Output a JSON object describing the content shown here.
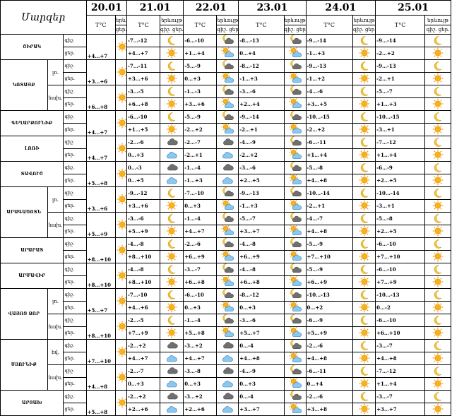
{
  "header": {
    "corner": "Մարզեր",
    "dates": [
      "20.01",
      "21.01",
      "22.01",
      "23.01",
      "24.01",
      "25.01"
    ],
    "temp_label": "T°C",
    "weather_label": "երևույթ",
    "day_label": "ցեր.",
    "night_label": "գիշ."
  },
  "rows": [
    {
      "region": "ՇԻՐԱԿ",
      "sub": "",
      "night": "գիշ.",
      "day": "ցեր.",
      "cells": [
        {
          "n": "",
          "d": "+4…+7",
          "ni": "none",
          "di": "sun"
        },
        {
          "n": "-7…-12",
          "d": "+4…+7",
          "ni": "moon",
          "di": "sun"
        },
        {
          "n": "-6…-10",
          "d": "+1…+4",
          "ni": "moon-cloud",
          "di": "sun-cloud"
        },
        {
          "n": "-8…-13",
          "d": "0…+4",
          "ni": "moon-cloud",
          "di": "sun-cloud"
        },
        {
          "n": "-9…-14",
          "d": "-1…+3",
          "ni": "moon",
          "di": "sun"
        },
        {
          "n": "-9…-14",
          "d": "-2…+2",
          "ni": "moon",
          "di": "sun"
        }
      ]
    },
    {
      "region": "ԿՈՏԱՅՔ",
      "sub": "լռ.",
      "night": "գիշ.",
      "day": "ցեր.",
      "cells": [
        {
          "n": "",
          "d": "+3…+6",
          "ni": "none",
          "di": "sun"
        },
        {
          "n": "-7…-11",
          "d": "+3…+6",
          "ni": "moon",
          "di": "sun"
        },
        {
          "n": "-5…-9",
          "d": "0…+3",
          "ni": "moon-cloud",
          "di": "sun-cloud"
        },
        {
          "n": "-8…-12",
          "d": "-1…+3",
          "ni": "moon-cloud",
          "di": "sun-cloud"
        },
        {
          "n": "-9…-13",
          "d": "-1…+2",
          "ni": "moon",
          "di": "sun"
        },
        {
          "n": "-9…-13",
          "d": "-2…+1",
          "ni": "moon",
          "di": "sun"
        }
      ]
    },
    {
      "region": "",
      "sub": "նախ.",
      "night": "գիշ.",
      "day": "ցեր.",
      "cells": [
        {
          "n": "",
          "d": "+6…+8",
          "ni": "none",
          "di": "sun"
        },
        {
          "n": "-3…-5",
          "d": "+6…+8",
          "ni": "moon",
          "di": "sun"
        },
        {
          "n": "-1…-3",
          "d": "+3…+6",
          "ni": "moon-cloud",
          "di": "sun-cloud"
        },
        {
          "n": "-3…-6",
          "d": "+2…+4",
          "ni": "moon-cloud",
          "di": "sun-cloud"
        },
        {
          "n": "-4…-6",
          "d": "+3…+5",
          "ni": "moon",
          "di": "sun"
        },
        {
          "n": "-5…-7",
          "d": "+1…+3",
          "ni": "moon",
          "di": "sun"
        }
      ]
    },
    {
      "region": "ԳԵՂԱՐՔՈՒՆԻՔ",
      "sub": "",
      "night": "գիշ.",
      "day": "ցեր.",
      "cells": [
        {
          "n": "",
          "d": "+4…+7",
          "ni": "none",
          "di": "sun"
        },
        {
          "n": "-6…-10",
          "d": "+1…+5",
          "ni": "moon",
          "di": "sun"
        },
        {
          "n": "-5…-9",
          "d": "-2…+2",
          "ni": "moon-cloud",
          "di": "sun-cloud"
        },
        {
          "n": "-9…-14",
          "d": "-2…+1",
          "ni": "moon-cloud",
          "di": "sun-cloud"
        },
        {
          "n": "-10…-15",
          "d": "-2…+2",
          "ni": "moon",
          "di": "sun"
        },
        {
          "n": "-10…-15",
          "d": "-3…+1",
          "ni": "moon",
          "di": "sun"
        }
      ]
    },
    {
      "region": "ԼՈՌԻ",
      "sub": "",
      "night": "գիշ.",
      "day": "ցեր.",
      "cells": [
        {
          "n": "",
          "d": "+4…+7",
          "ni": "none",
          "di": "sun"
        },
        {
          "n": "-2…-6",
          "d": "0…+3",
          "ni": "cloud-dark",
          "di": "cloud-blue"
        },
        {
          "n": "-2…-7",
          "d": "-2…+1",
          "ni": "cloud-dark",
          "di": "cloud-blue"
        },
        {
          "n": "-4…-9",
          "d": "-2…+2",
          "ni": "moon-cloud",
          "di": "sun-cloud"
        },
        {
          "n": "-6…-11",
          "d": "+1…+4",
          "ni": "moon",
          "di": "sun"
        },
        {
          "n": "-7…-12",
          "d": "+1…+4",
          "ni": "moon",
          "di": "sun"
        }
      ]
    },
    {
      "region": "ՏԱՎՈՒՇ",
      "sub": "",
      "night": "գիշ.",
      "day": "ցեր.",
      "cells": [
        {
          "n": "",
          "d": "+5…+8",
          "ni": "none",
          "di": "sun"
        },
        {
          "n": "0…-3",
          "d": "0…+5",
          "ni": "cloud-dark",
          "di": "cloud-blue"
        },
        {
          "n": "-1…-4",
          "d": "-1…+3",
          "ni": "cloud-dark",
          "di": "cloud-blue"
        },
        {
          "n": "-3…-6",
          "d": "+2…+5",
          "ni": "moon-cloud",
          "di": "sun-cloud"
        },
        {
          "n": "-5…-8",
          "d": "+4…+8",
          "ni": "moon",
          "di": "sun"
        },
        {
          "n": "-6…-9",
          "d": "+2…+5",
          "ni": "moon",
          "di": "sun"
        }
      ]
    },
    {
      "region": "ԱՐԱԳԱԾՈՏՆ",
      "sub": "լռ.",
      "night": "գիշ.",
      "day": "ցեր.",
      "cells": [
        {
          "n": "",
          "d": "+3…+6",
          "ni": "none",
          "di": "sun"
        },
        {
          "n": "-9…-12",
          "d": "+3…+6",
          "ni": "moon",
          "di": "sun"
        },
        {
          "n": "-7…-10",
          "d": "0…+3",
          "ni": "moon-cloud",
          "di": "sun-cloud"
        },
        {
          "n": "-9…-13",
          "d": "-1…+3",
          "ni": "moon-cloud",
          "di": "sun-cloud"
        },
        {
          "n": "-10…-14",
          "d": "-2…+1",
          "ni": "moon",
          "di": "sun"
        },
        {
          "n": "-10…-14",
          "d": "-3…+1",
          "ni": "moon",
          "di": "sun"
        }
      ]
    },
    {
      "region": "",
      "sub": "նախ.",
      "night": "գիշ.",
      "day": "ցեր.",
      "cells": [
        {
          "n": "",
          "d": "+5…+9",
          "ni": "none",
          "di": "sun"
        },
        {
          "n": "-3…-6",
          "d": "+5…+9",
          "ni": "moon",
          "di": "sun"
        },
        {
          "n": "-1…-4",
          "d": "+4…+7",
          "ni": "moon-cloud",
          "di": "sun-cloud"
        },
        {
          "n": "-5…-7",
          "d": "+3…+7",
          "ni": "moon-cloud",
          "di": "sun-cloud"
        },
        {
          "n": "-4…-7",
          "d": "+4…+8",
          "ni": "moon",
          "di": "sun"
        },
        {
          "n": "-5…-8",
          "d": "+2…+5",
          "ni": "moon",
          "di": "sun"
        }
      ]
    },
    {
      "region": "ԱՐԱՐԱՏ",
      "sub": "",
      "night": "գիշ.",
      "day": "ցեր.",
      "cells": [
        {
          "n": "",
          "d": "+8…+10",
          "ni": "none",
          "di": "sun"
        },
        {
          "n": "-4…-8",
          "d": "+8…+10",
          "ni": "moon",
          "di": "sun"
        },
        {
          "n": "-2…-6",
          "d": "+6…+9",
          "ni": "moon-cloud",
          "di": "sun-cloud"
        },
        {
          "n": "-4…-8",
          "d": "+6…+9",
          "ni": "moon-cloud",
          "di": "sun-cloud"
        },
        {
          "n": "-5…-9",
          "d": "+7…+10",
          "ni": "moon",
          "di": "sun"
        },
        {
          "n": "-6…-10",
          "d": "+7…+10",
          "ni": "moon",
          "di": "sun"
        }
      ]
    },
    {
      "region": "ԱՐՄԱՎԻՐ",
      "sub": "",
      "night": "գիշ.",
      "day": "ցեր.",
      "cells": [
        {
          "n": "",
          "d": "+8…+10",
          "ni": "none",
          "di": "sun"
        },
        {
          "n": "-4…-8",
          "d": "+8…+10",
          "ni": "moon",
          "di": "sun"
        },
        {
          "n": "-3…-7",
          "d": "+6…+8",
          "ni": "moon-cloud",
          "di": "sun-cloud"
        },
        {
          "n": "-4…-8",
          "d": "+6…+8",
          "ni": "moon-cloud",
          "di": "sun-cloud"
        },
        {
          "n": "-5…-9",
          "d": "+6…+9",
          "ni": "moon",
          "di": "sun"
        },
        {
          "n": "-6…-10",
          "d": "+7…+9",
          "ni": "moon",
          "di": "sun"
        }
      ]
    },
    {
      "region": "ՎԱՅՈՑ ՁՈՐ",
      "sub": "լռ.",
      "night": "գիշ.",
      "day": "ցեր.",
      "cells": [
        {
          "n": "",
          "d": "+5…+7",
          "ni": "none",
          "di": "sun"
        },
        {
          "n": "-7…-10",
          "d": "+4…+6",
          "ni": "moon",
          "di": "sun"
        },
        {
          "n": "-6…-10",
          "d": "0…+3",
          "ni": "moon-cloud",
          "di": "sun-cloud"
        },
        {
          "n": "-8…-12",
          "d": "0…+3",
          "ni": "moon-cloud",
          "di": "sun-cloud"
        },
        {
          "n": "-10…-13",
          "d": "0…+2",
          "ni": "moon",
          "di": "sun"
        },
        {
          "n": "-10…-13",
          "d": "0…-2",
          "ni": "moon",
          "di": "sun"
        }
      ]
    },
    {
      "region": "",
      "sub": "նախ.",
      "night": "գիշ.",
      "day": "ցեր.",
      "cells": [
        {
          "n": "",
          "d": "+8…+10",
          "ni": "none",
          "di": "sun"
        },
        {
          "n": "-2…-5",
          "d": "+7…+9",
          "ni": "moon",
          "di": "sun"
        },
        {
          "n": "-1…-4",
          "d": "+5…+8",
          "ni": "moon-cloud",
          "di": "sun-cloud"
        },
        {
          "n": "-3…-6",
          "d": "+5…+7",
          "ni": "moon-cloud",
          "di": "sun-cloud"
        },
        {
          "n": "-6…-9",
          "d": "+5…+9",
          "ni": "moon",
          "di": "sun"
        },
        {
          "n": "-6…-10",
          "d": "+6…+10",
          "ni": "moon",
          "di": "sun"
        }
      ]
    },
    {
      "region": "ՍՅՈՒՆԻՔ",
      "sub": "հվ.",
      "night": "գիշ.",
      "day": "ցեր.",
      "cells": [
        {
          "n": "",
          "d": "+7…+10",
          "ni": "none",
          "di": "sun"
        },
        {
          "n": "-2…+2",
          "d": "+4…+7",
          "ni": "cloud-dark",
          "di": "cloud-blue"
        },
        {
          "n": "-3…+2",
          "d": "+4…+7",
          "ni": "cloud-dark",
          "di": "cloud-blue"
        },
        {
          "n": "0…-4",
          "d": "+4…+8",
          "ni": "moon-cloud",
          "di": "sun-cloud"
        },
        {
          "n": "-2…-6",
          "d": "+4…+8",
          "ni": "moon",
          "di": "sun"
        },
        {
          "n": "-3…-7",
          "d": "+4…+8",
          "ni": "moon",
          "di": "sun"
        }
      ]
    },
    {
      "region": "",
      "sub": "նախ.",
      "night": "գիշ.",
      "day": "ցեր.",
      "cells": [
        {
          "n": "",
          "d": "+4…+8",
          "ni": "none",
          "di": "sun"
        },
        {
          "n": "-2…-7",
          "d": "0…+3",
          "ni": "cloud-dark",
          "di": "cloud-blue"
        },
        {
          "n": "-3…-8",
          "d": "0…+3",
          "ni": "cloud-dark",
          "di": "cloud-blue"
        },
        {
          "n": "-4…-9",
          "d": "0…+3",
          "ni": "moon-cloud",
          "di": "sun-cloud"
        },
        {
          "n": "-6…-11",
          "d": "0…+4",
          "ni": "moon",
          "di": "sun"
        },
        {
          "n": "-7…-12",
          "d": "+1…+4",
          "ni": "moon",
          "di": "sun"
        }
      ]
    },
    {
      "region": "ԱՐՑԱԽ",
      "sub": "",
      "night": "գիշ.",
      "day": "ցեր.",
      "cells": [
        {
          "n": "",
          "d": "+5…+8",
          "ni": "none",
          "di": "sun"
        },
        {
          "n": "-2…+2",
          "d": "+2…+6",
          "ni": "cloud-dark",
          "di": "cloud-blue"
        },
        {
          "n": "-3…+2",
          "d": "+2…+6",
          "ni": "cloud-dark",
          "di": "cloud-blue"
        },
        {
          "n": "0…-4",
          "d": "+3…+7",
          "ni": "moon-cloud",
          "di": "sun-cloud"
        },
        {
          "n": "-2…-6",
          "d": "+3…+8",
          "ni": "moon",
          "di": "sun"
        },
        {
          "n": "-3…-7",
          "d": "+3…+7",
          "ni": "moon",
          "di": "sun"
        }
      ]
    }
  ]
}
